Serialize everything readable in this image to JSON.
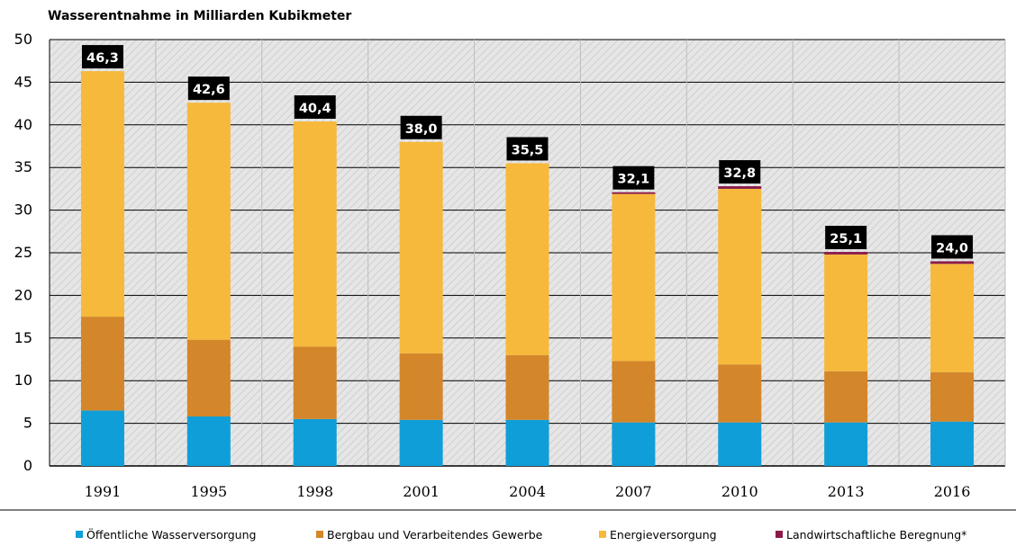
{
  "chart_data": {
    "type": "bar",
    "stacked": true,
    "title": "Wasserentnahme in Milliarden Kubikmeter",
    "xlabel": "",
    "ylabel": "",
    "ylim": [
      0,
      50
    ],
    "yticks": [
      0,
      5,
      10,
      15,
      20,
      25,
      30,
      35,
      40,
      45,
      50
    ],
    "grid": true,
    "legend_position": "bottom",
    "categories": [
      "1991",
      "1995",
      "1998",
      "2001",
      "2004",
      "2007",
      "2010",
      "2013",
      "2016"
    ],
    "series": [
      {
        "name": "Öffentliche Wasserversorgung",
        "color": "#0f9ed8",
        "values": [
          6.5,
          5.8,
          5.5,
          5.4,
          5.4,
          5.1,
          5.1,
          5.1,
          5.2
        ]
      },
      {
        "name": "Bergbau und Verarbeitendes Gewerbe",
        "color": "#d4862a",
        "values": [
          11.0,
          9.0,
          8.5,
          7.8,
          7.6,
          7.2,
          6.8,
          6.0,
          5.8
        ]
      },
      {
        "name": "Energieversorgung",
        "color": "#f6b93b",
        "values": [
          28.8,
          27.8,
          26.4,
          24.8,
          22.5,
          19.6,
          20.6,
          13.7,
          12.7
        ]
      },
      {
        "name": "Landwirtschaftliche Beregnung*",
        "color": "#8b1a4a",
        "values": [
          0,
          0,
          0,
          0,
          0,
          0.2,
          0.3,
          0.3,
          0.3
        ]
      }
    ],
    "totals": [
      "46,3",
      "42,6",
      "40,4",
      "38,0",
      "35,5",
      "32,1",
      "32,8",
      "25,1",
      "24,0"
    ],
    "total_values": [
      46.3,
      42.6,
      40.4,
      38.0,
      35.5,
      32.1,
      32.8,
      25.1,
      24.0
    ]
  }
}
